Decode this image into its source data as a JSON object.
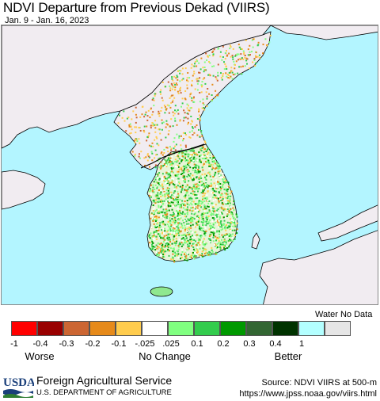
{
  "header": {
    "title": "NDVI Departure from Previous Dekad (VIIRS)",
    "subtitle": "Jan. 9 - Jan. 16, 2023"
  },
  "map": {
    "region": "Korean Peninsula",
    "colors": {
      "sea": "#b3f5ff",
      "land_no_data": "#f1ecf1",
      "border": "#000000",
      "province_line": "#777777"
    }
  },
  "legend": {
    "water_no_data_label": "Water No Data",
    "swatch_colors": [
      "#ff0000",
      "#990000",
      "#cc6633",
      "#e68a1a",
      "#ffcc4d",
      "#ffffff",
      "#80ff80",
      "#33cc4d",
      "#009900",
      "#336633",
      "#003300",
      "#b3ffff",
      "#e6e6e6"
    ],
    "ticks": [
      "-1",
      "-0.4",
      "-0.3",
      "-0.2",
      "-0.1",
      "-.025",
      ".025",
      "0.1",
      "0.2",
      "0.3",
      "0.4",
      "1"
    ],
    "categories": {
      "worse": "Worse",
      "no_change": "No Change",
      "better": "Better"
    }
  },
  "footer": {
    "logo_text": "USDA",
    "agency": "Foreign Agricultural Service",
    "department": "U.S. DEPARTMENT OF AGRICULTURE",
    "source_line1": "Source: NDVI VIIRS at 500-m",
    "source_line2": "https://www.jpss.noaa.gov/viirs.html"
  }
}
